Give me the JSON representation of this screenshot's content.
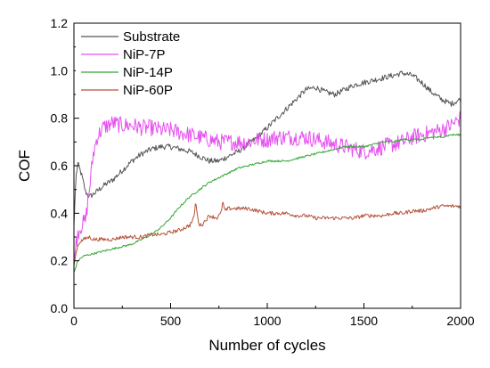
{
  "chart_data": {
    "type": "line",
    "title": "",
    "xlabel": "Number of cycles",
    "ylabel": "COF",
    "xlim": [
      0,
      2000
    ],
    "ylim": [
      0.0,
      1.2
    ],
    "xticks": [
      0,
      500,
      1000,
      1500,
      2000
    ],
    "xtick_labels": [
      "0",
      "500",
      "1000",
      "1500",
      "2000"
    ],
    "yticks": [
      0.0,
      0.2,
      0.4,
      0.6,
      0.8,
      1.0,
      1.2
    ],
    "ytick_labels": [
      "0.0",
      "0.2",
      "0.4",
      "0.6",
      "0.8",
      "1.0",
      "1.2"
    ],
    "grid": false,
    "legend_position": "top-left",
    "series": [
      {
        "name": "Substrate",
        "color": "#555555",
        "noise": 0.012,
        "x": [
          0,
          10,
          20,
          40,
          60,
          80,
          100,
          130,
          160,
          200,
          250,
          300,
          350,
          400,
          450,
          500,
          550,
          600,
          650,
          700,
          750,
          800,
          850,
          900,
          950,
          1000,
          1050,
          1100,
          1150,
          1200,
          1250,
          1300,
          1350,
          1400,
          1450,
          1500,
          1550,
          1600,
          1650,
          1700,
          1750,
          1800,
          1850,
          1900,
          1950,
          2000
        ],
        "y": [
          0.35,
          0.55,
          0.61,
          0.56,
          0.49,
          0.47,
          0.48,
          0.5,
          0.52,
          0.54,
          0.58,
          0.62,
          0.65,
          0.67,
          0.68,
          0.68,
          0.67,
          0.66,
          0.64,
          0.62,
          0.62,
          0.64,
          0.66,
          0.69,
          0.72,
          0.76,
          0.8,
          0.84,
          0.88,
          0.92,
          0.93,
          0.91,
          0.9,
          0.92,
          0.94,
          0.95,
          0.96,
          0.97,
          0.98,
          0.99,
          0.98,
          0.95,
          0.91,
          0.88,
          0.86,
          0.88
        ]
      },
      {
        "name": "NiP-7P",
        "color": "#e64ff0",
        "noise": 0.035,
        "x": [
          0,
          20,
          40,
          60,
          80,
          100,
          120,
          150,
          200,
          250,
          300,
          350,
          400,
          450,
          500,
          550,
          600,
          650,
          700,
          750,
          800,
          850,
          900,
          950,
          1000,
          1050,
          1100,
          1150,
          1200,
          1250,
          1300,
          1350,
          1400,
          1450,
          1500,
          1550,
          1600,
          1650,
          1700,
          1750,
          1800,
          1850,
          1900,
          1950,
          2000
        ],
        "y": [
          0.2,
          0.32,
          0.35,
          0.37,
          0.5,
          0.65,
          0.72,
          0.76,
          0.78,
          0.77,
          0.77,
          0.76,
          0.76,
          0.75,
          0.75,
          0.74,
          0.73,
          0.72,
          0.71,
          0.7,
          0.7,
          0.7,
          0.7,
          0.71,
          0.71,
          0.72,
          0.72,
          0.72,
          0.72,
          0.71,
          0.7,
          0.69,
          0.68,
          0.67,
          0.66,
          0.67,
          0.68,
          0.69,
          0.7,
          0.72,
          0.73,
          0.74,
          0.75,
          0.77,
          0.8
        ]
      },
      {
        "name": "NiP-14P",
        "color": "#33a833",
        "noise": 0.004,
        "x": [
          0,
          20,
          50,
          100,
          150,
          200,
          250,
          300,
          350,
          400,
          450,
          500,
          550,
          600,
          650,
          700,
          750,
          800,
          850,
          900,
          950,
          1000,
          1050,
          1100,
          1150,
          1200,
          1250,
          1300,
          1350,
          1400,
          1450,
          1500,
          1550,
          1600,
          1650,
          1700,
          1750,
          1800,
          1850,
          1900,
          1950,
          2000
        ],
        "y": [
          0.15,
          0.2,
          0.22,
          0.23,
          0.24,
          0.25,
          0.26,
          0.27,
          0.29,
          0.31,
          0.34,
          0.38,
          0.43,
          0.47,
          0.5,
          0.53,
          0.55,
          0.57,
          0.59,
          0.6,
          0.61,
          0.62,
          0.62,
          0.62,
          0.63,
          0.64,
          0.65,
          0.66,
          0.67,
          0.68,
          0.68,
          0.68,
          0.69,
          0.7,
          0.7,
          0.71,
          0.71,
          0.71,
          0.72,
          0.72,
          0.73,
          0.73
        ]
      },
      {
        "name": "NiP-60P",
        "color": "#b5533c",
        "noise": 0.008,
        "x": [
          0,
          15,
          30,
          50,
          80,
          100,
          150,
          200,
          250,
          300,
          350,
          400,
          450,
          500,
          550,
          600,
          620,
          630,
          640,
          650,
          660,
          700,
          740,
          760,
          770,
          780,
          800,
          850,
          900,
          950,
          1000,
          1050,
          1100,
          1150,
          1200,
          1250,
          1300,
          1350,
          1400,
          1450,
          1500,
          1550,
          1600,
          1650,
          1700,
          1750,
          1800,
          1850,
          1900,
          1950,
          2000
        ],
        "y": [
          0.18,
          0.25,
          0.28,
          0.29,
          0.3,
          0.29,
          0.29,
          0.29,
          0.3,
          0.3,
          0.3,
          0.31,
          0.31,
          0.32,
          0.33,
          0.35,
          0.38,
          0.45,
          0.38,
          0.35,
          0.35,
          0.39,
          0.38,
          0.4,
          0.45,
          0.41,
          0.42,
          0.42,
          0.42,
          0.41,
          0.4,
          0.4,
          0.4,
          0.39,
          0.39,
          0.38,
          0.38,
          0.38,
          0.38,
          0.38,
          0.39,
          0.39,
          0.39,
          0.4,
          0.4,
          0.41,
          0.41,
          0.42,
          0.43,
          0.43,
          0.43
        ]
      }
    ]
  }
}
